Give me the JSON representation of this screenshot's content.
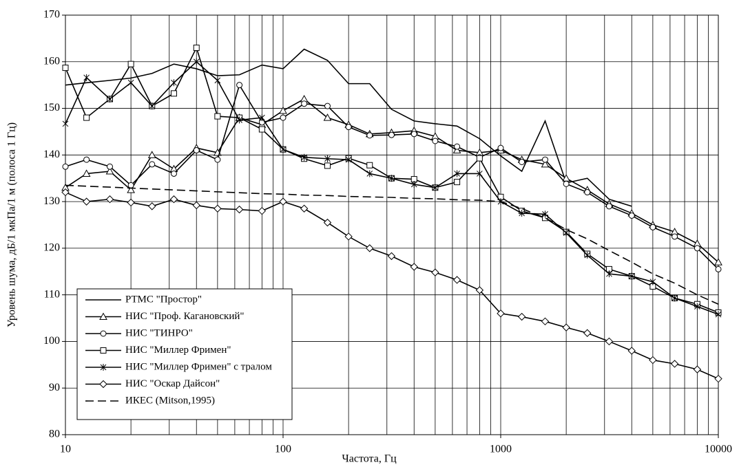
{
  "chart_data": {
    "type": "line",
    "x_label": "Частота, Гц",
    "y_label": "Уровень шума, дБ/1 мкПа/1 м  (полоса 1 Гц)",
    "x": [
      10,
      12.5,
      16,
      20,
      25,
      31.5,
      40,
      50,
      63,
      80,
      100,
      125,
      160,
      200,
      250,
      315,
      400,
      500,
      630,
      800,
      1000,
      1250,
      1600,
      2000,
      2500,
      3150,
      4000,
      5000,
      6300,
      8000,
      10000
    ],
    "xlog": true,
    "grid": true,
    "legend": "lower left",
    "xlim": [
      10,
      10000
    ],
    "xticks": [
      10,
      100,
      1000,
      10000
    ],
    "ylim": [
      80,
      170
    ],
    "yticks": [
      80,
      90,
      100,
      110,
      120,
      130,
      140,
      150,
      160,
      170
    ],
    "series": [
      {
        "name": "РТМС \"Простор\"",
        "color": "#000000",
        "marker": "none",
        "dash": false,
        "values": [
          155,
          155.5,
          156,
          156.5,
          157.5,
          159.5,
          158.5,
          157,
          157.2,
          159.3,
          158.5,
          162.7,
          160.3,
          155.3,
          155.3,
          149.8,
          147.3,
          146.7,
          146.2,
          143.5,
          139.8,
          136.5,
          147.3,
          134,
          135,
          130.5,
          129,
          null,
          null,
          null,
          null
        ]
      },
      {
        "name": "НИС \"Проф. Кагановский\"",
        "color": "#000000",
        "marker": "triangle",
        "dash": false,
        "values": [
          133,
          136,
          136.5,
          132.5,
          140,
          137,
          141.5,
          140.5,
          148,
          146.5,
          149.5,
          152,
          148,
          146.5,
          144.5,
          144.8,
          145.2,
          144,
          141,
          140.5,
          141,
          139,
          138,
          135,
          132.5,
          129.5,
          127.5,
          125,
          123.5,
          121,
          117
        ]
      },
      {
        "name": "НИС \"ТИНРО\"",
        "color": "#000000",
        "marker": "circle",
        "dash": false,
        "values": [
          137.5,
          139,
          137.5,
          133.5,
          138,
          136,
          141,
          139,
          155,
          147,
          148,
          151,
          150.5,
          146,
          144.2,
          144.3,
          144.5,
          143,
          141.8,
          139.5,
          141.5,
          138.5,
          139,
          133.8,
          132,
          129,
          127,
          124.5,
          122.5,
          120,
          115.5
        ]
      },
      {
        "name": "НИС \"Миллер Фримен\"",
        "color": "#000000",
        "marker": "square",
        "dash": false,
        "values": [
          158.7,
          148,
          152,
          159.5,
          150.5,
          153.2,
          163,
          148.3,
          148,
          145.5,
          141.2,
          139.2,
          137.7,
          139.3,
          137.8,
          135,
          134.8,
          133,
          134.2,
          139.3,
          131,
          128,
          126.5,
          123.5,
          118.8,
          115.5,
          114,
          111.8,
          109.3,
          108,
          106.2
        ]
      },
      {
        "name": "НИС \"Миллер Фримен\" с тралом",
        "color": "#000000",
        "marker": "asterisk",
        "dash": false,
        "values": [
          146.7,
          156.6,
          152,
          155.5,
          150.5,
          155.5,
          160,
          156,
          147.5,
          148,
          141.2,
          139.5,
          139.2,
          139,
          136,
          135,
          133.7,
          133,
          136,
          136,
          130,
          127.5,
          127.3,
          123.3,
          118.5,
          114.5,
          114,
          112.8,
          109.3,
          107.5,
          105.8
        ]
      },
      {
        "name": "НИС \"Оскар Дайсон\"",
        "color": "#000000",
        "marker": "diamond",
        "dash": false,
        "values": [
          132,
          130,
          130.5,
          129.8,
          129,
          130.5,
          129.2,
          128.5,
          128.3,
          128,
          130,
          128.5,
          125.5,
          122.5,
          120,
          118.3,
          116,
          114.8,
          113.2,
          111,
          106,
          105.3,
          104.3,
          103,
          101.8,
          100,
          98,
          96,
          95.2,
          94,
          92
        ]
      },
      {
        "name": "ИКЕС (Mitson,1995)",
        "color": "#000000",
        "marker": "none",
        "dash": true,
        "values": [
          133.5,
          133.3,
          133.1,
          132.9,
          132.7,
          132.5,
          132.3,
          132.1,
          131.9,
          131.7,
          131.6,
          131.4,
          131.3,
          131.1,
          131,
          130.9,
          130.7,
          130.6,
          130.4,
          130.3,
          130,
          128.5,
          126.5,
          124,
          122,
          119.5,
          117,
          114.5,
          112.5,
          110,
          108
        ]
      }
    ]
  }
}
